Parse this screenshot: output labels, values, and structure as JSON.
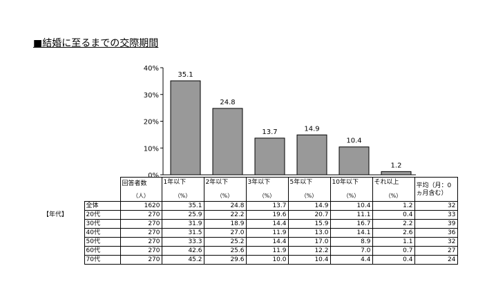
{
  "title": "■結婚に至るまでの交際期間",
  "chart_data": {
    "type": "bar",
    "categories": [
      "1年以下",
      "2年以下",
      "3年以下",
      "5年以下",
      "10年以下",
      "それ以上"
    ],
    "values": [
      35.1,
      24.8,
      13.7,
      14.9,
      10.4,
      1.2
    ],
    "value_labels": [
      "35.1",
      "24.8",
      "13.7",
      "14.9",
      "10.4",
      "1.2"
    ],
    "ylim": [
      0,
      40
    ],
    "yticks": [
      "0%",
      "10%",
      "20%",
      "30%",
      "40%"
    ],
    "bar_color": "#999999"
  },
  "table": {
    "header": {
      "respondents": "回答者数",
      "respondents_unit": "（人）",
      "cols": [
        "1年以下",
        "2年以下",
        "3年以下",
        "5年以下",
        "10年以下",
        "それ以上"
      ],
      "unit": "（%）",
      "avg": "平均（月：0ヵ月含む）"
    },
    "group_label": "【年代】",
    "rows": [
      {
        "label": "全体",
        "n": "1620",
        "v": [
          "35.1",
          "24.8",
          "13.7",
          "14.9",
          "10.4",
          "1.2"
        ],
        "avg": "32"
      },
      {
        "label": "20代",
        "n": "270",
        "v": [
          "25.9",
          "22.2",
          "19.6",
          "20.7",
          "11.1",
          "0.4"
        ],
        "avg": "33"
      },
      {
        "label": "30代",
        "n": "270",
        "v": [
          "31.9",
          "18.9",
          "14.4",
          "15.9",
          "16.7",
          "2.2"
        ],
        "avg": "39"
      },
      {
        "label": "40代",
        "n": "270",
        "v": [
          "31.5",
          "27.0",
          "11.9",
          "13.0",
          "14.1",
          "2.6"
        ],
        "avg": "36"
      },
      {
        "label": "50代",
        "n": "270",
        "v": [
          "33.3",
          "25.2",
          "14.4",
          "17.0",
          "8.9",
          "1.1"
        ],
        "avg": "32"
      },
      {
        "label": "60代",
        "n": "270",
        "v": [
          "42.6",
          "25.6",
          "11.9",
          "12.2",
          "7.0",
          "0.7"
        ],
        "avg": "27"
      },
      {
        "label": "70代",
        "n": "270",
        "v": [
          "45.2",
          "29.6",
          "10.0",
          "10.4",
          "4.4",
          "0.4"
        ],
        "avg": "24"
      }
    ]
  }
}
